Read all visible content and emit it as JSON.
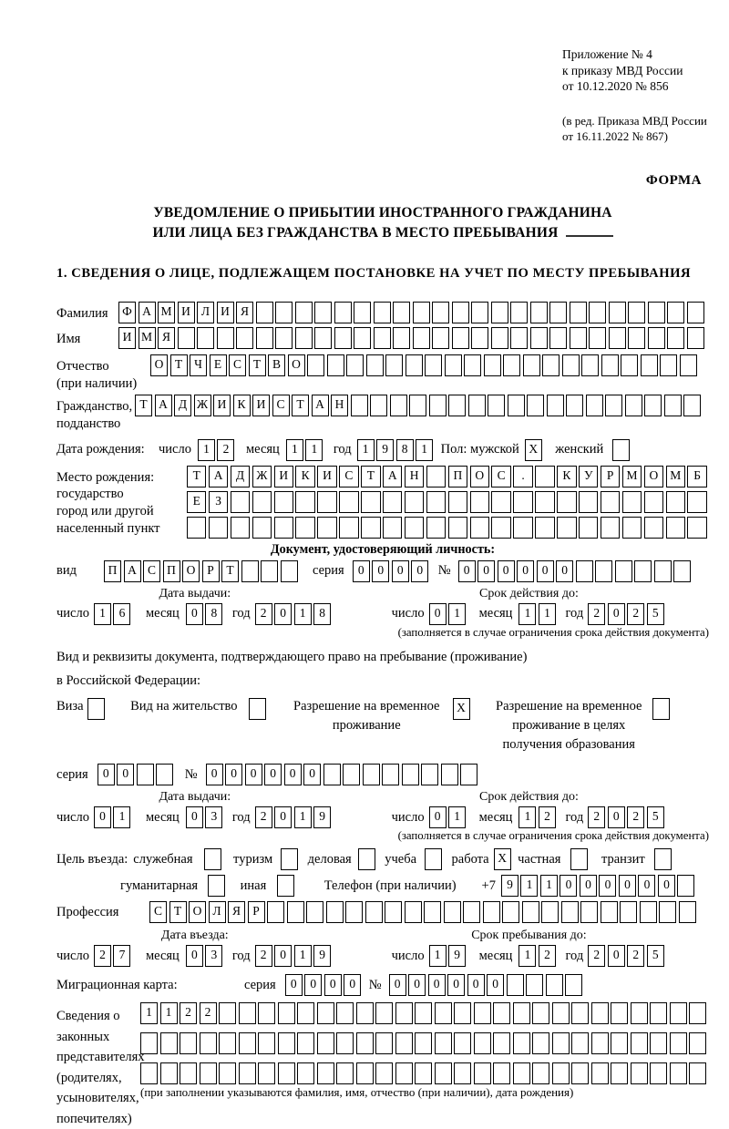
{
  "appendix": {
    "lines_primary": [
      "Приложение № 4",
      "к приказу МВД России",
      "от 10.12.2020 № 856"
    ],
    "lines_edition": [
      "(в ред. Приказа МВД России",
      "от 16.11.2022 № 867)"
    ]
  },
  "form_label": "ФОРМА",
  "title": {
    "line1": "УВЕДОМЛЕНИЕ О ПРИБЫТИИ ИНОСТРАННОГО ГРАЖДАНИНА",
    "line2": "ИЛИ ЛИЦА БЕЗ ГРАЖДАНСТВА В МЕСТО ПРЕБЫВАНИЯ"
  },
  "section1": {
    "title": "1. СВЕДЕНИЯ О ЛИЦЕ, ПОДЛЕЖАЩЕМ ПОСТАНОВКЕ НА УЧЕТ ПО МЕСТУ ПРЕБЫВАНИЯ"
  },
  "surname": {
    "label": "Фамилия",
    "value": "ФАМИЛИЯ"
  },
  "firstname": {
    "label": "Имя",
    "value": "ИМЯ"
  },
  "patronymic": {
    "label_lines": [
      "Отчество",
      "(при наличии)"
    ],
    "value": "ОТЧЕСТВО"
  },
  "citizenship": {
    "label_lines": [
      "Гражданство,",
      "подданство"
    ],
    "value": "ТАДЖИКИСТАН"
  },
  "birth": {
    "date_label": "Дата рождения:",
    "day_label": "число",
    "day": "12",
    "month_label": "месяц",
    "month": "11",
    "year_label": "год",
    "year": "1981",
    "sex_male_label": "Пол: мужской",
    "sex_male": "X",
    "sex_female_label": "женский",
    "sex_female": "",
    "place_label_lines": [
      "Место рождения:",
      "государство",
      "город или другой",
      "населенный пункт"
    ],
    "place_row1": "ТАДЖИКИСТАН ПОС. КУРМОМБ",
    "place_row2": "ЕЗ",
    "place_row3": ""
  },
  "identity_doc": {
    "header": "Документ, удостоверяющий личность:",
    "kind_label": "вид",
    "kind": "ПАСПОРТ",
    "series_label": "серия",
    "series": "0000",
    "number_label": "№",
    "number": "000000",
    "issue_header": "Дата выдачи:",
    "issue_day_label": "число",
    "issue_day": "16",
    "issue_month_label": "месяц",
    "issue_month": "08",
    "issue_year_label": "год",
    "issue_year": "2018",
    "valid_header": "Срок действия до:",
    "valid_day_label": "число",
    "valid_day": "01",
    "valid_month_label": "месяц",
    "valid_month": "11",
    "valid_year_label": "год",
    "valid_year": "2025",
    "note": "(заполняется в случае ограничения срока действия документа)"
  },
  "residence_doc": {
    "intro_line1": "Вид и реквизиты документа, подтверждающего право на пребывание (проживание)",
    "intro_line2": "в Российской Федерации:",
    "option_visa": {
      "label_lines": [
        "Виза"
      ],
      "checked": ""
    },
    "option_residence_permit": {
      "label_lines": [
        "Вид на жительство"
      ],
      "checked": ""
    },
    "option_temp_residence": {
      "label_lines": [
        "Разрешение на временное",
        "проживание"
      ],
      "checked": "X"
    },
    "option_temp_residence_edu": {
      "label_lines": [
        "Разрешение на временное",
        "проживание в целях",
        "получения образования"
      ],
      "checked": ""
    },
    "series_label": "серия",
    "series": "00",
    "number_label": "№",
    "number": "000000",
    "issue_header": "Дата выдачи:",
    "issue_day_label": "число",
    "issue_day": "01",
    "issue_month_label": "месяц",
    "issue_month": "03",
    "issue_year_label": "год",
    "issue_year": "2019",
    "valid_header": "Срок действия до:",
    "valid_day_label": "число",
    "valid_day": "01",
    "valid_month_label": "месяц",
    "valid_month": "12",
    "valid_year_label": "год",
    "valid_year": "2025",
    "note": "(заполняется в случае ограничения срока действия документа)"
  },
  "visit": {
    "purpose_label": "Цель въезда:",
    "purposes": [
      {
        "label": "служебная",
        "checked": ""
      },
      {
        "label": "туризм",
        "checked": ""
      },
      {
        "label": "деловая",
        "checked": ""
      },
      {
        "label": "учеба",
        "checked": ""
      },
      {
        "label": "работа",
        "checked": "X"
      },
      {
        "label": "частная",
        "checked": ""
      },
      {
        "label": "транзит",
        "checked": ""
      },
      {
        "label": "гуманитарная",
        "checked": ""
      },
      {
        "label": "иная",
        "checked": ""
      }
    ],
    "phone_label": "Телефон (при наличии)",
    "phone_prefix": "+7",
    "phone": "911000000",
    "profession_label": "Профессия",
    "profession": "СТОЛЯР",
    "entry_header": "Дата въезда:",
    "entry_day_label": "число",
    "entry_day": "27",
    "entry_month_label": "месяц",
    "entry_month": "03",
    "entry_year_label": "год",
    "entry_year": "2019",
    "stay_header": "Срок пребывания до:",
    "stay_day_label": "число",
    "stay_day": "19",
    "stay_month_label": "месяц",
    "stay_month": "12",
    "stay_year_label": "год",
    "stay_year": "2025"
  },
  "migration_card": {
    "label": "Миграционная карта:",
    "series_label": "серия",
    "series": "0000",
    "number_label": "№",
    "number": "000000"
  },
  "representatives": {
    "label_lines": [
      "Сведения о",
      "законных",
      "представителях",
      "(родителях,",
      "усыновителях,",
      "попечителях)"
    ],
    "row1": "1122",
    "row2": "",
    "row3": "",
    "note": "(при заполнении указываются фамилия, имя, отчество (при наличии), дата рождения)"
  }
}
